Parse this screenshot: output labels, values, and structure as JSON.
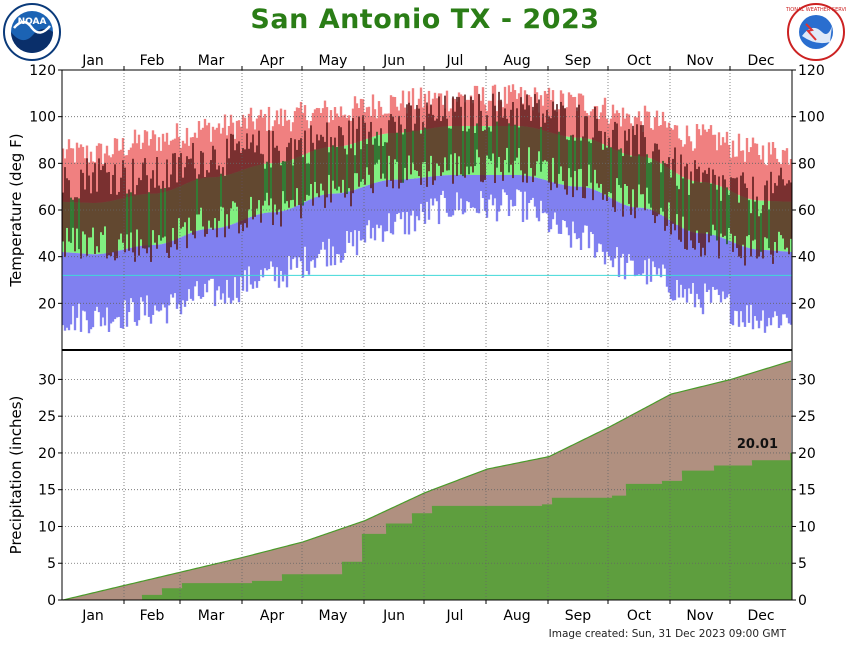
{
  "title": "San Antonio TX - 2023",
  "footer": "Image created: Sun, 31 Dec 2023 09:00 GMT",
  "logos": {
    "left": {
      "name": "noaa-logo",
      "text": "NOAA"
    },
    "right": {
      "name": "nws-logo",
      "text": "NATIONAL WEATHER SERVICE"
    }
  },
  "colors": {
    "record_high": "#f08080",
    "normal_band": "#80f080",
    "record_low": "#8080f0",
    "observed": "#5a1c1c",
    "observed_in_band": "#1f5a1f",
    "freezing_line": "#40d8d8",
    "normal_precip": "#b09080",
    "normal_precip_line": "#4a9a2a",
    "observed_precip": "#5e9e3e",
    "title": "#2a7d16"
  },
  "chart_data": [
    {
      "type": "bar",
      "name": "temperature",
      "ylabel": "Temperature (deg F)",
      "ylim": [
        0,
        120
      ],
      "yticks": [
        20,
        40,
        60,
        80,
        100,
        120
      ],
      "months": [
        "Jan",
        "Feb",
        "Mar",
        "Apr",
        "May",
        "Jun",
        "Jul",
        "Aug",
        "Sep",
        "Oct",
        "Nov",
        "Dec"
      ],
      "freezing_line": 32,
      "grid": true,
      "normal_high_midmonth": [
        63,
        67,
        74,
        80,
        87,
        93,
        96,
        96,
        91,
        83,
        72,
        64
      ],
      "normal_low_midmonth": [
        41,
        45,
        52,
        59,
        67,
        73,
        75,
        75,
        70,
        61,
        50,
        43
      ],
      "record_high_midmonth": [
        84,
        90,
        95,
        99,
        102,
        106,
        108,
        108,
        106,
        99,
        91,
        85
      ],
      "record_low_midmonth": [
        14,
        17,
        24,
        32,
        43,
        54,
        62,
        62,
        48,
        34,
        22,
        14
      ],
      "observed_high_midmonth": [
        76,
        74,
        83,
        86,
        90,
        97,
        101,
        103,
        98,
        88,
        72,
        66
      ],
      "observed_low_midmonth": [
        47,
        45,
        55,
        60,
        68,
        76,
        78,
        80,
        73,
        63,
        48,
        43
      ]
    },
    {
      "type": "area",
      "name": "precipitation",
      "ylabel": "Precipitation (inches)",
      "ylim": [
        0,
        34
      ],
      "yticks": [
        0,
        5,
        10,
        15,
        20,
        25,
        30
      ],
      "months": [
        "Jan",
        "Feb",
        "Mar",
        "Apr",
        "May",
        "Jun",
        "Jul",
        "Aug",
        "Sep",
        "Oct",
        "Nov",
        "Dec"
      ],
      "grid": true,
      "annotation": "20.01",
      "normal_cumulative": [
        [
          0,
          0
        ],
        [
          31,
          2.0
        ],
        [
          59,
          3.8
        ],
        [
          90,
          5.8
        ],
        [
          120,
          7.9
        ],
        [
          151,
          10.8
        ],
        [
          181,
          14.6
        ],
        [
          212,
          17.8
        ],
        [
          243,
          19.5
        ],
        [
          273,
          23.5
        ],
        [
          304,
          28.0
        ],
        [
          334,
          30.0
        ],
        [
          364,
          32.5
        ]
      ],
      "observed_cumulative": [
        [
          0,
          0
        ],
        [
          40,
          0.7
        ],
        [
          50,
          1.6
        ],
        [
          60,
          2.3
        ],
        [
          95,
          2.6
        ],
        [
          110,
          3.5
        ],
        [
          140,
          5.2
        ],
        [
          150,
          9.0
        ],
        [
          162,
          10.4
        ],
        [
          175,
          11.8
        ],
        [
          185,
          12.8
        ],
        [
          240,
          13.0
        ],
        [
          245,
          13.9
        ],
        [
          275,
          14.2
        ],
        [
          282,
          15.8
        ],
        [
          300,
          16.2
        ],
        [
          310,
          17.6
        ],
        [
          326,
          18.3
        ],
        [
          345,
          19.0
        ],
        [
          364,
          20.01
        ]
      ]
    }
  ]
}
